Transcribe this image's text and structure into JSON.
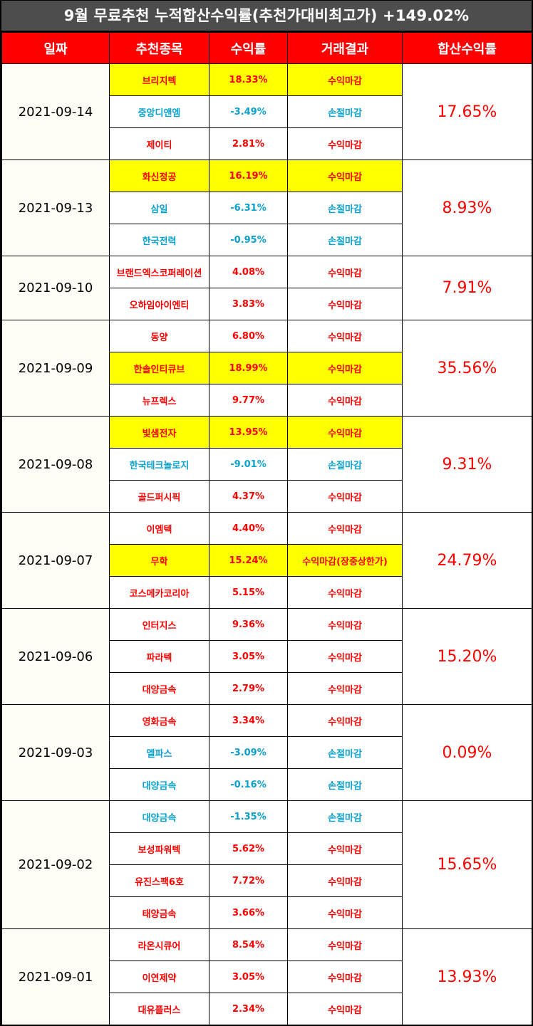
{
  "title": "9월 무료추천 누적합산수익률(추천가대비최고가) +149.02%",
  "headers": [
    "일짜",
    "추천종목",
    "수익률",
    "거래결과",
    "합산수익률"
  ],
  "colors": {
    "header_bg": "#ff0000",
    "title_bg": "#4d4d4d",
    "profit": "#ff0000",
    "loss": "#0aa1cf",
    "highlight": "#ffff00",
    "date_bg": "#fffdf6"
  },
  "groups": [
    {
      "date": "2021-09-14",
      "total": "17.65%",
      "rows": [
        {
          "stock": "브리지텍",
          "rate": "18.33%",
          "result": "수익마감",
          "type": "profit",
          "highlight": true
        },
        {
          "stock": "중앙디앤엠",
          "rate": "-3.49%",
          "result": "손절마감",
          "type": "loss",
          "highlight": false
        },
        {
          "stock": "제이티",
          "rate": "2.81%",
          "result": "수익마감",
          "type": "profit",
          "highlight": false
        }
      ]
    },
    {
      "date": "2021-09-13",
      "total": "8.93%",
      "rows": [
        {
          "stock": "화신정공",
          "rate": "16.19%",
          "result": "수익마감",
          "type": "profit",
          "highlight": true
        },
        {
          "stock": "삼일",
          "rate": "-6.31%",
          "result": "손절마감",
          "type": "loss",
          "highlight": false
        },
        {
          "stock": "한국전력",
          "rate": "-0.95%",
          "result": "손절마감",
          "type": "loss",
          "highlight": false
        }
      ]
    },
    {
      "date": "2021-09-10",
      "total": "7.91%",
      "rows": [
        {
          "stock": "브랜드엑스코퍼레이션",
          "rate": "4.08%",
          "result": "수익마감",
          "type": "profit",
          "highlight": false
        },
        {
          "stock": "오하임아이엔티",
          "rate": "3.83%",
          "result": "수익마감",
          "type": "profit",
          "highlight": false
        }
      ]
    },
    {
      "date": "2021-09-09",
      "total": "35.56%",
      "rows": [
        {
          "stock": "동양",
          "rate": "6.80%",
          "result": "수익마감",
          "type": "profit",
          "highlight": false
        },
        {
          "stock": "한솔인티큐브",
          "rate": "18.99%",
          "result": "수익마감",
          "type": "profit",
          "highlight": true
        },
        {
          "stock": "뉴프렉스",
          "rate": "9.77%",
          "result": "수익마감",
          "type": "profit",
          "highlight": false
        }
      ]
    },
    {
      "date": "2021-09-08",
      "total": "9.31%",
      "rows": [
        {
          "stock": "빛샘전자",
          "rate": "13.95%",
          "result": "수익마감",
          "type": "profit",
          "highlight": true
        },
        {
          "stock": "한국테크놀로지",
          "rate": "-9.01%",
          "result": "손절마감",
          "type": "loss",
          "highlight": false
        },
        {
          "stock": "골드퍼시픽",
          "rate": "4.37%",
          "result": "수익마감",
          "type": "profit",
          "highlight": false
        }
      ]
    },
    {
      "date": "2021-09-07",
      "total": "24.79%",
      "rows": [
        {
          "stock": "이엠텍",
          "rate": "4.40%",
          "result": "수익마감",
          "type": "profit",
          "highlight": false
        },
        {
          "stock": "무학",
          "rate": "15.24%",
          "result": "수익마감(장중상한가)",
          "type": "profit",
          "highlight": true
        },
        {
          "stock": "코스메카코리아",
          "rate": "5.15%",
          "result": "수익마감",
          "type": "profit",
          "highlight": false
        }
      ]
    },
    {
      "date": "2021-09-06",
      "total": "15.20%",
      "rows": [
        {
          "stock": "인터지스",
          "rate": "9.36%",
          "result": "수익마감",
          "type": "profit",
          "highlight": false
        },
        {
          "stock": "파라텍",
          "rate": "3.05%",
          "result": "수익마감",
          "type": "profit",
          "highlight": false
        },
        {
          "stock": "대양금속",
          "rate": "2.79%",
          "result": "수익마감",
          "type": "profit",
          "highlight": false
        }
      ]
    },
    {
      "date": "2021-09-03",
      "total": "0.09%",
      "rows": [
        {
          "stock": "영화금속",
          "rate": "3.34%",
          "result": "수익마감",
          "type": "profit",
          "highlight": false
        },
        {
          "stock": "멜파스",
          "rate": "-3.09%",
          "result": "손절마감",
          "type": "loss",
          "highlight": false
        },
        {
          "stock": "대양금속",
          "rate": "-0.16%",
          "result": "손절마감",
          "type": "loss",
          "highlight": false
        }
      ]
    },
    {
      "date": "2021-09-02",
      "total": "15.65%",
      "rows": [
        {
          "stock": "대양금속",
          "rate": "-1.35%",
          "result": "손절마감",
          "type": "loss",
          "highlight": false
        },
        {
          "stock": "보성파워텍",
          "rate": "5.62%",
          "result": "수익마감",
          "type": "profit",
          "highlight": false
        },
        {
          "stock": "유진스팩6호",
          "rate": "7.72%",
          "result": "수익마감",
          "type": "profit",
          "highlight": false
        },
        {
          "stock": "태양금속",
          "rate": "3.66%",
          "result": "수익마감",
          "type": "profit",
          "highlight": false
        }
      ]
    },
    {
      "date": "2021-09-01",
      "total": "13.93%",
      "rows": [
        {
          "stock": "라온시큐어",
          "rate": "8.54%",
          "result": "수익마감",
          "type": "profit",
          "highlight": false
        },
        {
          "stock": "이연제약",
          "rate": "3.05%",
          "result": "수익마감",
          "type": "profit",
          "highlight": false
        },
        {
          "stock": "대유플러스",
          "rate": "2.34%",
          "result": "수익마감",
          "type": "profit",
          "highlight": false
        }
      ]
    }
  ]
}
